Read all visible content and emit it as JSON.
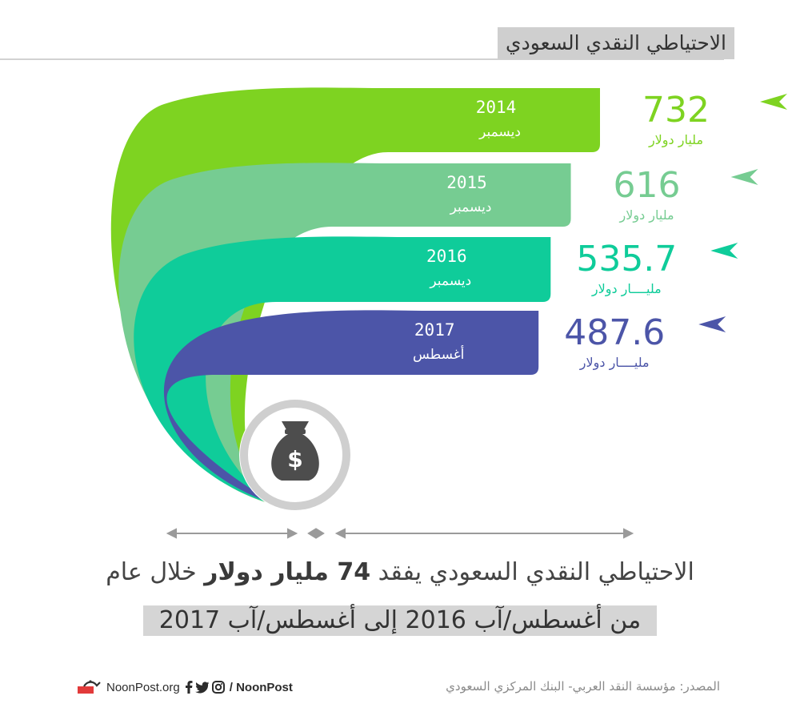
{
  "header": {
    "title": "الاحتياطي النقدي السعودي"
  },
  "chart_data": {
    "type": "bar",
    "categories": [
      "2014 ديسمبر",
      "2015 ديسمبر",
      "2016 ديسمبر",
      "2017 أغسطس"
    ],
    "values": [
      732,
      616,
      535.7,
      487.6
    ],
    "unit": "مليار دولار",
    "bars": [
      {
        "year": "2014",
        "month": "ديسمبر",
        "value": 732,
        "value_label": "732",
        "unit_label": "مليار دولار",
        "color": "#7ed321"
      },
      {
        "year": "2015",
        "month": "ديسمبر",
        "value": 616,
        "value_label": "616",
        "unit_label": "مليار دولار",
        "color": "#76cc92"
      },
      {
        "year": "2016",
        "month": "ديسمبر",
        "value": 535.7,
        "value_label": "535.7",
        "unit_label": "مليــــار دولار",
        "color": "#0fcc9a"
      },
      {
        "year": "2017",
        "month": "أغسطس",
        "value": 487.6,
        "value_label": "487.6",
        "unit_label": "مليــــار دولار",
        "color": "#4c55a8"
      }
    ],
    "icon": "money-bag-icon"
  },
  "headline": {
    "part_start": "الاحتياطي النقدي السعودي يفقد",
    "part_bold": "74 مليار دولار",
    "part_end": "خلال عام",
    "line2": "من أغسطس/آب 2016 إلى أغسطس/آب 2017"
  },
  "footer": {
    "source": "المصدر: مؤسسة النقد العربي- البنك المركزي السعودي",
    "handle": "/ NoonPost",
    "site": "NoonPost.org"
  },
  "colors": {
    "header_bg": "#cfcfcf",
    "text": "#444444",
    "muted": "#8a8a8a"
  }
}
